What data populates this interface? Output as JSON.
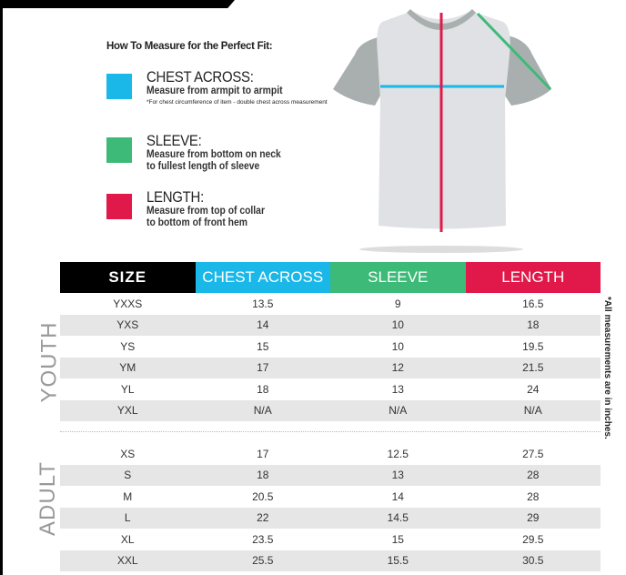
{
  "heading": "How To Measure for the Perfect Fit:",
  "legend": [
    {
      "title": "CHEST ACROSS:",
      "desc": "Measure from armpit to armpit",
      "note": "*For chest circumference of item - double chest across measurement",
      "color": "#1ab8e8"
    },
    {
      "title": "SLEEVE:",
      "desc1": "Measure from bottom on neck",
      "desc2": "to fullest length of sleeve",
      "color": "#3dba78"
    },
    {
      "title": "LENGTH:",
      "desc1": "Measure from top of collar",
      "desc2": "to bottom of front hem",
      "color": "#e0194a"
    }
  ],
  "table": {
    "headers": [
      "SIZE",
      "CHEST ACROSS",
      "SLEEVE",
      "LENGTH"
    ],
    "youth_label": "YOUTH",
    "adult_label": "ADULT",
    "youth": [
      [
        "YXXS",
        "13.5",
        "9",
        "16.5"
      ],
      [
        "YXS",
        "14",
        "10",
        "18"
      ],
      [
        "YS",
        "15",
        "10",
        "19.5"
      ],
      [
        "YM",
        "17",
        "12",
        "21.5"
      ],
      [
        "YL",
        "18",
        "13",
        "24"
      ],
      [
        "YXL",
        "N/A",
        "N/A",
        "N/A"
      ]
    ],
    "adult": [
      [
        "XS",
        "17",
        "12.5",
        "27.5"
      ],
      [
        "S",
        "18",
        "13",
        "28"
      ],
      [
        "M",
        "20.5",
        "14",
        "28"
      ],
      [
        "L",
        "22",
        "14.5",
        "29"
      ],
      [
        "XL",
        "23.5",
        "15",
        "29.5"
      ],
      [
        "XXL",
        "25.5",
        "15.5",
        "30.5"
      ]
    ]
  },
  "note": "*All measurements are in inches."
}
